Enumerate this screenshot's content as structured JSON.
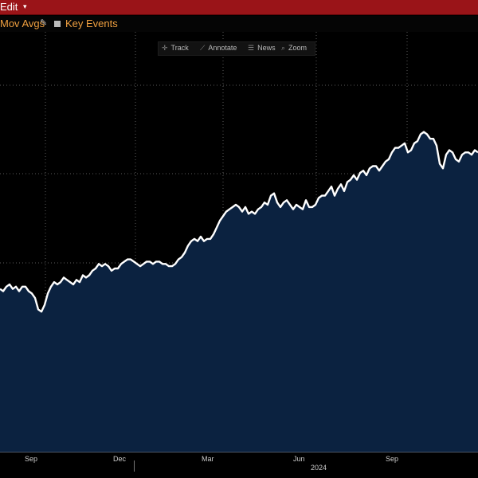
{
  "header": {
    "edit_label": "Edit",
    "caret": "▾"
  },
  "subbar": {
    "mov_avgs": "Mov Avgs",
    "key_events": "Key Events"
  },
  "toolbar": {
    "track": "Track",
    "annotate": "Annotate",
    "news": "News",
    "zoom": "Zoom"
  },
  "colors": {
    "header_bg": "#9a1418",
    "area_fill": "#0b2240",
    "line": "#ffffff",
    "grid": "#5a5a5a"
  },
  "icons": [
    "pencil-icon",
    "checkbox-icon",
    "crosshair-icon",
    "annotate-icon",
    "news-icon",
    "zoom-icon"
  ],
  "axis": {
    "months": [
      "Sep",
      "Dec",
      "Mar",
      "Jun",
      "Sep"
    ],
    "year": "2024"
  },
  "chart_data": {
    "type": "area",
    "x": [
      0,
      4,
      8,
      12,
      16,
      20,
      24,
      28,
      32,
      36,
      40,
      44,
      48,
      52,
      56,
      60,
      64,
      68,
      72,
      76,
      80,
      84,
      88,
      92,
      96,
      100,
      104,
      108,
      112,
      116,
      120,
      124,
      128,
      132,
      136,
      140,
      144,
      148,
      152,
      156,
      160,
      164,
      168,
      172,
      176,
      180,
      184,
      188,
      192,
      196,
      200,
      204,
      208,
      212,
      216,
      220,
      224,
      228,
      232,
      236,
      240,
      244,
      248,
      252,
      256,
      260,
      264,
      268,
      272,
      276,
      280,
      284,
      288,
      292,
      296,
      300,
      304,
      308,
      312,
      316,
      320,
      324,
      328,
      332,
      336,
      340,
      344,
      348,
      352,
      356,
      360,
      364,
      368,
      372,
      376,
      380,
      384,
      388,
      392,
      396,
      400,
      404,
      408,
      412,
      416,
      420,
      424,
      428,
      432,
      436,
      440,
      444,
      448,
      452,
      456,
      460,
      464,
      468,
      472,
      476,
      480,
      484,
      488,
      492,
      496,
      500,
      504,
      508,
      512,
      516,
      520,
      524,
      528,
      532,
      536,
      540,
      544,
      548,
      552,
      556,
      560,
      564,
      568,
      572,
      576,
      580,
      584,
      588,
      592,
      596,
      600
    ],
    "series": [
      {
        "values": [
          67,
          66,
          68,
          69,
          67,
          68,
          66,
          68,
          68,
          66,
          65,
          63,
          58,
          57,
          60,
          65,
          68,
          70,
          69,
          70,
          72,
          71,
          70,
          69,
          71,
          70,
          73,
          72,
          73,
          75,
          76,
          78,
          77,
          78,
          77,
          75,
          76,
          76,
          78,
          79,
          80,
          80,
          79,
          78,
          77,
          78,
          79,
          79,
          78,
          79,
          79,
          78,
          78,
          77,
          77,
          78,
          80,
          81,
          83,
          86,
          88,
          89,
          88,
          90,
          88,
          89,
          89,
          91,
          94,
          97,
          99,
          101,
          102,
          103,
          104,
          103,
          101,
          103,
          100,
          101,
          100,
          102,
          103,
          105,
          104,
          108,
          109,
          105,
          103,
          105,
          106,
          104,
          102,
          104,
          103,
          102,
          106,
          103,
          103,
          104,
          107,
          108,
          108,
          110,
          112,
          108,
          111,
          113,
          110,
          114,
          115,
          117,
          115,
          118,
          119,
          117,
          120,
          121,
          121,
          119,
          121,
          123,
          124,
          127,
          129,
          129,
          130,
          131,
          127,
          128,
          131,
          132,
          135,
          136,
          135,
          133,
          133,
          130,
          122,
          120,
          126,
          128,
          127,
          124,
          123,
          126,
          127,
          127,
          126,
          128,
          127
        ]
      }
    ],
    "ylim": [
      0,
      180
    ],
    "grid": true,
    "x_tick_labels": [
      "Sep",
      "Dec",
      "Mar",
      "Jun",
      "Sep"
    ],
    "secondary_x_label": "2024"
  }
}
